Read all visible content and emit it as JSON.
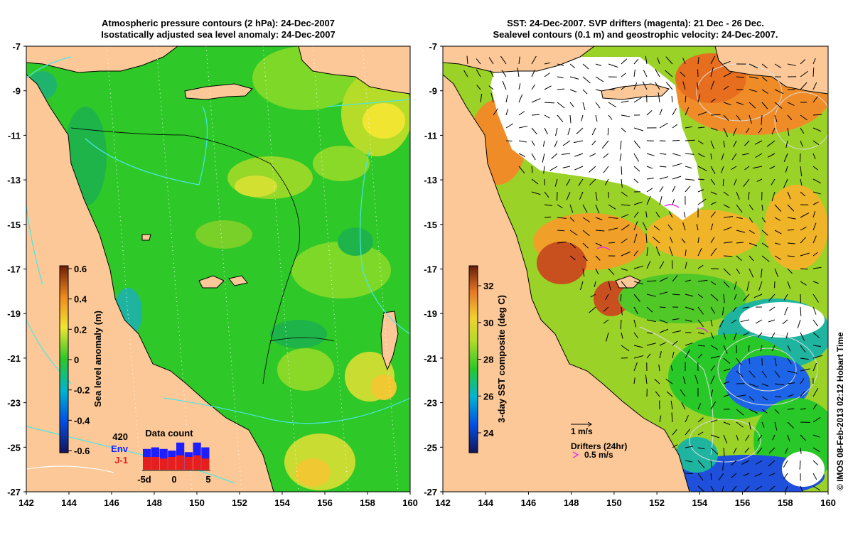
{
  "left_panel": {
    "title_line1": "Atmospheric pressure contours (2 hPa): 24-Dec-2007",
    "title_line2": "Isostatically adjusted sea level anomaly: 24-Dec-2007",
    "colorbar": {
      "label": "Sea level anomaly (m)",
      "ticks": [
        "0.6",
        "0.4",
        "0.2",
        "0",
        "-0.2",
        "-0.4",
        "-0.6"
      ]
    },
    "data_count": {
      "title": "Data count",
      "max_label": "420",
      "series1": "Env",
      "series2": "J-1",
      "x_left": "-5d",
      "x_mid": "0",
      "x_right": "5",
      "env_values": [
        0.65,
        0.7,
        0.65,
        0.6,
        0.85,
        0.55,
        0.85,
        0.7
      ],
      "j1_values": [
        0.4,
        0.4,
        0.35,
        0.4,
        0.45,
        0.4,
        0.45,
        0.35
      ]
    }
  },
  "right_panel": {
    "title_line1": "SST: 24-Dec-2007. SVP drifters (magenta): 21 Dec - 26 Dec.",
    "title_line2": "Sealevel contours (0.1 m) and geostrophic velocity: 24-Dec-2007.",
    "colorbar": {
      "label": "3-day SST composite (deg C)",
      "ticks": [
        "32",
        "30",
        "28",
        "26",
        "24"
      ]
    },
    "vector_scale": "1 m/s",
    "drifters_label": "Drifters (24hr)",
    "drifters_speed": "0.5 m/s"
  },
  "axes": {
    "x_ticks": [
      "142",
      "144",
      "146",
      "148",
      "150",
      "152",
      "154",
      "156",
      "158",
      "160"
    ],
    "y_ticks": [
      "-7",
      "-9",
      "-11",
      "-13",
      "-15",
      "-17",
      "-19",
      "-21",
      "-23",
      "-25",
      "-27"
    ]
  },
  "credit": "© IMOS 08-Feb-2013 02:12 Hobart Time",
  "colors": {
    "land": "#fcc897",
    "ocean_green": "#2ec828",
    "sst_orange": "#f08c28",
    "cloud": "#ffffff"
  }
}
